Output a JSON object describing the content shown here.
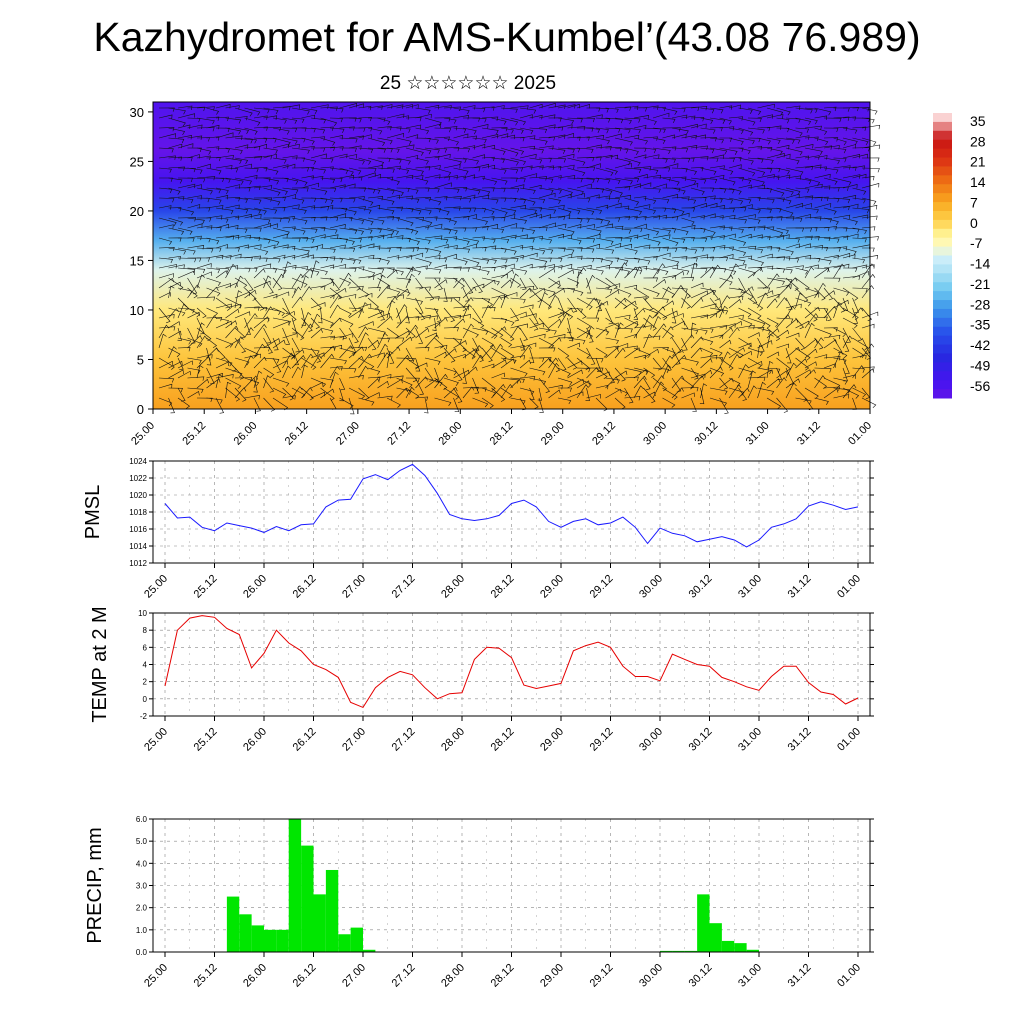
{
  "header": {
    "title": "Kazhydromet for AMS-Kumbel’(43.08 76.989)",
    "subtitle": "25 ☆☆☆☆☆☆ 2025"
  },
  "colors": {
    "pressure": "#1a1aff",
    "temperature": "#e60000",
    "precipitation": "#00e600"
  },
  "time_ticks": [
    "25.00",
    "25.12",
    "26.00",
    "26.12",
    "27.00",
    "27.12",
    "28.00",
    "28.12",
    "29.00",
    "29.12",
    "30.00",
    "30.12",
    "31.00",
    "31.12",
    "01.00"
  ],
  "chart_data": [
    {
      "type": "heatmap",
      "title": "",
      "x_ticks": [
        "25.00",
        "25.12",
        "26.00",
        "26.12",
        "27.00",
        "27.12",
        "28.00",
        "28.12",
        "29.00",
        "29.12",
        "30.00",
        "30.12",
        "31.00",
        "31.12",
        "01.00"
      ],
      "y_ticks": [
        "0",
        "5",
        "10",
        "15",
        "20",
        "25",
        "30"
      ],
      "ylim": [
        0,
        31
      ],
      "colorbar_labels": [
        "35",
        "28",
        "21",
        "14",
        "7",
        "0",
        "-7",
        "-14",
        "-21",
        "-28",
        "-35",
        "-42",
        "-49",
        "-56"
      ],
      "temperature_by_level": [
        {
          "level": 0,
          "value": 8
        },
        {
          "level": 5,
          "value": 3
        },
        {
          "level": 10,
          "value": -2
        },
        {
          "level": 14,
          "value": -10
        },
        {
          "level": 17,
          "value": -25
        },
        {
          "level": 20,
          "value": -38
        },
        {
          "level": 23,
          "value": -52
        },
        {
          "level": 26,
          "value": -58
        },
        {
          "level": 31,
          "value": -54
        }
      ],
      "overlay": "wind barbs"
    },
    {
      "type": "line",
      "ylabel": "PMSL",
      "y_ticks": [
        "1024",
        "1022",
        "1020",
        "1018",
        "1016",
        "1014",
        "1012"
      ],
      "ylim": [
        1012,
        1024
      ],
      "x_ticks": [
        "25.00",
        "25.12",
        "26.00",
        "26.12",
        "27.00",
        "27.12",
        "28.00",
        "28.12",
        "29.00",
        "29.12",
        "30.00",
        "30.12",
        "31.00",
        "31.12",
        "01.00"
      ],
      "x_hours": [
        0,
        3,
        6,
        9,
        12,
        15,
        18,
        21,
        24,
        27,
        30,
        33,
        36,
        39,
        42,
        45,
        48,
        51,
        54,
        57,
        60,
        63,
        66,
        69,
        72,
        75,
        78,
        81,
        84,
        87,
        90,
        93,
        96,
        99,
        102,
        105,
        108,
        111,
        114,
        117,
        120,
        123,
        126,
        129,
        132,
        135,
        138,
        141,
        144,
        147,
        150,
        153,
        156,
        159,
        162,
        165,
        168
      ],
      "values": [
        1019,
        1017.3,
        1017.4,
        1016.2,
        1015.8,
        1016.7,
        1016.4,
        1016.1,
        1015.6,
        1016.3,
        1015.8,
        1016.5,
        1016.6,
        1018.6,
        1019.4,
        1019.5,
        1021.9,
        1022.4,
        1021.8,
        1022.9,
        1023.6,
        1022.3,
        1020.2,
        1017.7,
        1017.2,
        1017,
        1017.2,
        1017.6,
        1019,
        1019.4,
        1018.6,
        1016.9,
        1016.2,
        1016.9,
        1017.2,
        1016.5,
        1016.7,
        1017.4,
        1016.2,
        1014.3,
        1016.1,
        1015.5,
        1015.2,
        1014.5,
        1014.8,
        1015.1,
        1014.7,
        1013.9,
        1014.7,
        1016.2,
        1016.6,
        1017.2,
        1018.7,
        1019.2,
        1018.8,
        1018.3,
        1018.6
      ]
    },
    {
      "type": "line",
      "ylabel": "TEMP at 2 M",
      "y_ticks": [
        "10",
        "8",
        "6",
        "4",
        "2",
        "0",
        "-2"
      ],
      "ylim": [
        -2,
        10
      ],
      "x_ticks": [
        "25.00",
        "25.12",
        "26.00",
        "26.12",
        "27.00",
        "27.12",
        "28.00",
        "28.12",
        "29.00",
        "29.12",
        "30.00",
        "30.12",
        "31.00",
        "31.12",
        "01.00"
      ],
      "x_hours": [
        0,
        3,
        6,
        9,
        12,
        15,
        18,
        21,
        24,
        27,
        30,
        33,
        36,
        39,
        42,
        45,
        48,
        51,
        54,
        57,
        60,
        63,
        66,
        69,
        72,
        75,
        78,
        81,
        84,
        87,
        90,
        93,
        96,
        99,
        102,
        105,
        108,
        111,
        114,
        117,
        120,
        123,
        126,
        129,
        132,
        135,
        138,
        141,
        144,
        147,
        150,
        153,
        156,
        159,
        162,
        165,
        168
      ],
      "values": [
        1.5,
        8,
        9.4,
        9.7,
        9.5,
        8.2,
        7.5,
        3.6,
        5.3,
        8,
        6.5,
        5.6,
        4,
        3.4,
        2.5,
        -0.4,
        -1,
        1.3,
        2.5,
        3.2,
        2.8,
        1.3,
        0,
        0.6,
        0.7,
        4.6,
        6,
        5.9,
        4.8,
        1.6,
        1.2,
        1.5,
        1.8,
        5.6,
        6.2,
        6.6,
        6,
        3.8,
        2.6,
        2.6,
        2.1,
        5.2,
        4.6,
        4,
        3.8,
        2.5,
        2,
        1.4,
        1,
        2.6,
        3.8,
        3.8,
        1.9,
        0.8,
        0.5,
        -0.6,
        0.1
      ]
    },
    {
      "type": "bar",
      "ylabel": "PRECIP, mm",
      "y_ticks": [
        "6.0",
        "5.0",
        "4.0",
        "3.0",
        "2.0",
        "1.0",
        "0.0"
      ],
      "ylim": [
        0,
        6
      ],
      "x_ticks": [
        "25.00",
        "25.12",
        "26.00",
        "26.12",
        "27.00",
        "27.12",
        "28.00",
        "28.12",
        "29.00",
        "29.12",
        "30.00",
        "30.12",
        "31.00",
        "31.12",
        "01.00"
      ],
      "x_hours": [
        0,
        3,
        6,
        9,
        12,
        15,
        18,
        21,
        24,
        27,
        30,
        33,
        36,
        39,
        42,
        45,
        48,
        51,
        54,
        57,
        60,
        63,
        66,
        69,
        72,
        75,
        78,
        81,
        84,
        87,
        90,
        93,
        96,
        99,
        102,
        105,
        108,
        111,
        114,
        117,
        120,
        123,
        126,
        129,
        132,
        135,
        138,
        141,
        144,
        147,
        150,
        153,
        156,
        159,
        162,
        165
      ],
      "values": [
        0,
        0,
        0,
        0,
        0,
        2.5,
        1.7,
        1.2,
        1,
        1,
        6,
        4.8,
        2.6,
        3.7,
        0.8,
        1.1,
        0.1,
        0,
        0,
        0,
        0,
        0,
        0,
        0,
        0,
        0,
        0,
        0,
        0,
        0,
        0,
        0,
        0,
        0,
        0,
        0,
        0,
        0,
        0,
        0,
        0.05,
        0.05,
        0.05,
        2.6,
        1.3,
        0.5,
        0.4,
        0.1,
        0,
        0,
        0,
        0,
        0,
        0,
        0,
        0
      ]
    }
  ]
}
